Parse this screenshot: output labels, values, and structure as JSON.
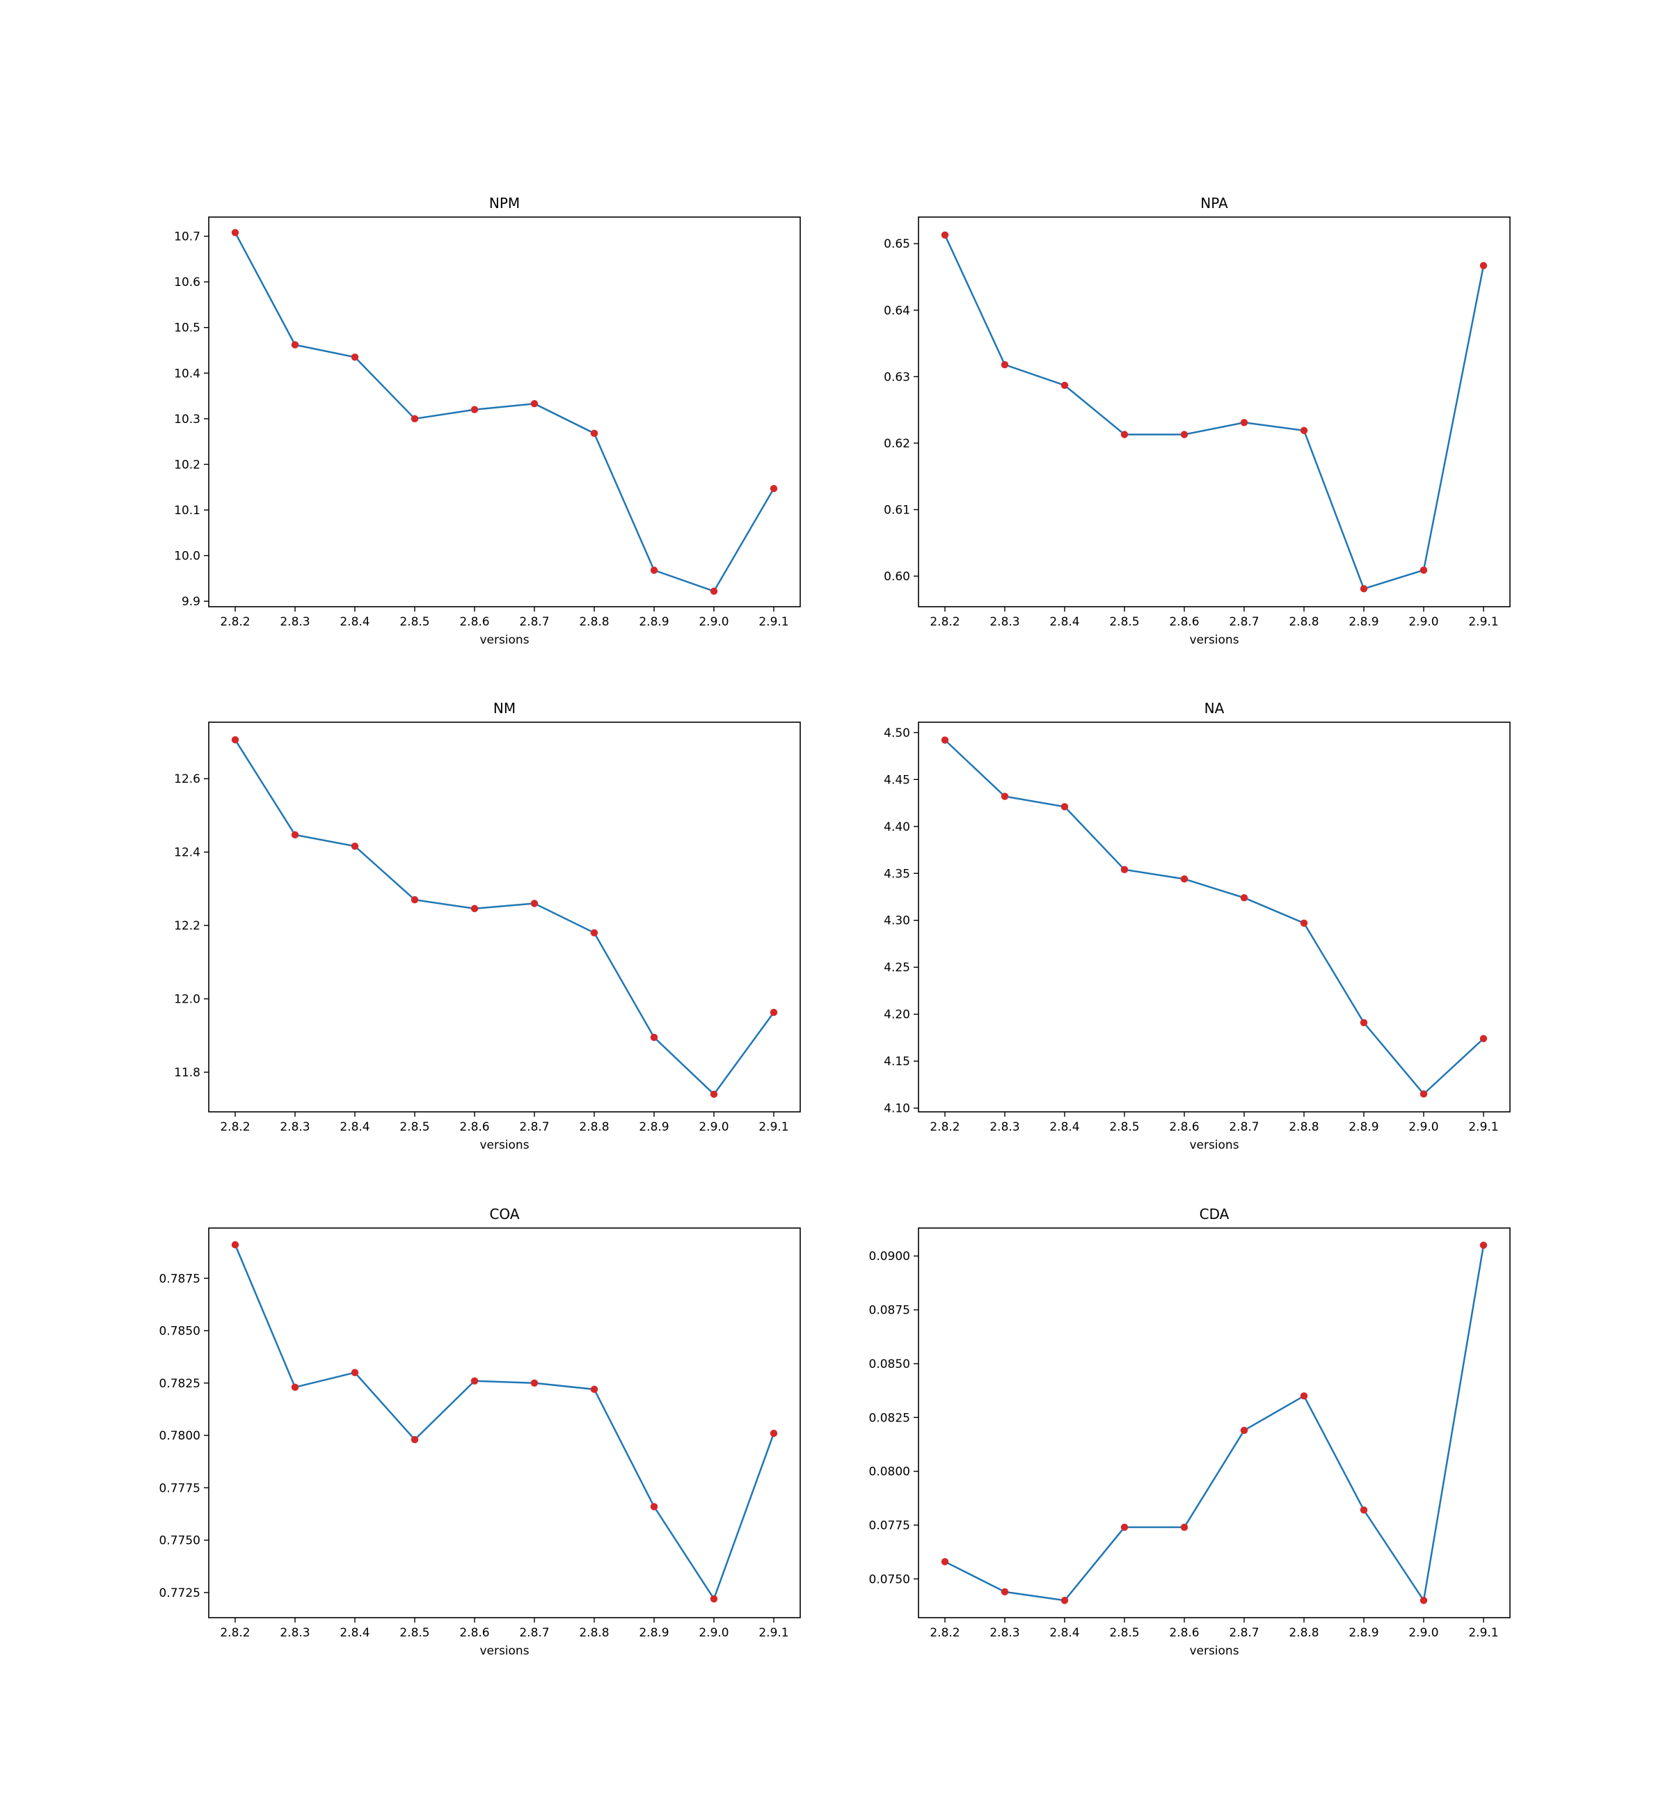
{
  "chart_data": [
    {
      "type": "line",
      "title": "NPM",
      "xlabel": "versions",
      "ylabel": "",
      "categories": [
        "2.8.2",
        "2.8.3",
        "2.8.4",
        "2.8.5",
        "2.8.6",
        "2.8.7",
        "2.8.8",
        "2.8.9",
        "2.9.0",
        "2.9.1"
      ],
      "values": [
        10.708,
        10.462,
        10.435,
        10.3,
        10.32,
        10.333,
        10.268,
        9.968,
        9.922,
        10.147
      ],
      "ylim": [
        9.888,
        10.742
      ],
      "yticks": [
        "9.9",
        "10.0",
        "10.1",
        "10.2",
        "10.3",
        "10.4",
        "10.5",
        "10.6",
        "10.7"
      ],
      "yticks_values": [
        9.9,
        10.0,
        10.1,
        10.2,
        10.3,
        10.4,
        10.5,
        10.6,
        10.7
      ],
      "grid": false,
      "line_color": "#1f77b4",
      "marker_color": "#d62728"
    },
    {
      "type": "line",
      "title": "NPA",
      "xlabel": "versions",
      "ylabel": "",
      "categories": [
        "2.8.2",
        "2.8.3",
        "2.8.4",
        "2.8.5",
        "2.8.6",
        "2.8.7",
        "2.8.8",
        "2.8.9",
        "2.9.0",
        "2.9.1"
      ],
      "values": [
        0.6513,
        0.6318,
        0.6287,
        0.6213,
        0.6213,
        0.6231,
        0.6219,
        0.5981,
        0.6009,
        0.6467
      ],
      "ylim": [
        0.5954,
        0.654
      ],
      "yticks": [
        "0.60",
        "0.61",
        "0.62",
        "0.63",
        "0.64",
        "0.65"
      ],
      "yticks_values": [
        0.6,
        0.61,
        0.62,
        0.63,
        0.64,
        0.65
      ],
      "grid": false,
      "line_color": "#1f77b4",
      "marker_color": "#d62728"
    },
    {
      "type": "line",
      "title": "NM",
      "xlabel": "versions",
      "ylabel": "",
      "categories": [
        "2.8.2",
        "2.8.3",
        "2.8.4",
        "2.8.5",
        "2.8.6",
        "2.8.7",
        "2.8.8",
        "2.8.9",
        "2.9.0",
        "2.9.1"
      ],
      "values": [
        12.706,
        12.447,
        12.416,
        12.27,
        12.246,
        12.26,
        12.18,
        11.895,
        11.74,
        11.963
      ],
      "ylim": [
        11.692,
        12.754
      ],
      "yticks": [
        "11.8",
        "12.0",
        "12.2",
        "12.4",
        "12.6"
      ],
      "yticks_values": [
        11.8,
        12.0,
        12.2,
        12.4,
        12.6
      ],
      "grid": false,
      "line_color": "#1f77b4",
      "marker_color": "#d62728"
    },
    {
      "type": "line",
      "title": "NA",
      "xlabel": "versions",
      "ylabel": "",
      "categories": [
        "2.8.2",
        "2.8.3",
        "2.8.4",
        "2.8.5",
        "2.8.6",
        "2.8.7",
        "2.8.8",
        "2.8.9",
        "2.9.0",
        "2.9.1"
      ],
      "values": [
        4.492,
        4.432,
        4.421,
        4.354,
        4.344,
        4.324,
        4.297,
        4.191,
        4.115,
        4.174
      ],
      "ylim": [
        4.096,
        4.511
      ],
      "yticks": [
        "4.10",
        "4.15",
        "4.20",
        "4.25",
        "4.30",
        "4.35",
        "4.40",
        "4.45",
        "4.50"
      ],
      "yticks_values": [
        4.1,
        4.15,
        4.2,
        4.25,
        4.3,
        4.35,
        4.4,
        4.45,
        4.5
      ],
      "grid": false,
      "line_color": "#1f77b4",
      "marker_color": "#d62728"
    },
    {
      "type": "line",
      "title": "COA",
      "xlabel": "versions",
      "ylabel": "",
      "categories": [
        "2.8.2",
        "2.8.3",
        "2.8.4",
        "2.8.5",
        "2.8.6",
        "2.8.7",
        "2.8.8",
        "2.8.9",
        "2.9.0",
        "2.9.1"
      ],
      "values": [
        0.7891,
        0.7823,
        0.783,
        0.7798,
        0.7826,
        0.7825,
        0.7822,
        0.7766,
        0.7722,
        0.7801
      ],
      "ylim": [
        0.7713,
        0.7899
      ],
      "yticks": [
        "0.7725",
        "0.7750",
        "0.7775",
        "0.7800",
        "0.7825",
        "0.7850",
        "0.7875"
      ],
      "yticks_values": [
        0.7725,
        0.775,
        0.7775,
        0.78,
        0.7825,
        0.785,
        0.7875
      ],
      "grid": false,
      "line_color": "#1f77b4",
      "marker_color": "#d62728"
    },
    {
      "type": "line",
      "title": "CDA",
      "xlabel": "versions",
      "ylabel": "",
      "categories": [
        "2.8.2",
        "2.8.3",
        "2.8.4",
        "2.8.5",
        "2.8.6",
        "2.8.7",
        "2.8.8",
        "2.8.9",
        "2.9.0",
        "2.9.1"
      ],
      "values": [
        0.0758,
        0.0744,
        0.074,
        0.0774,
        0.0774,
        0.0819,
        0.0835,
        0.0782,
        0.074,
        0.0905
      ],
      "ylim": [
        0.0732,
        0.0913
      ],
      "yticks": [
        "0.0750",
        "0.0775",
        "0.0800",
        "0.0825",
        "0.0850",
        "0.0875",
        "0.0900"
      ],
      "yticks_values": [
        0.075,
        0.0775,
        0.08,
        0.0825,
        0.085,
        0.0875,
        0.09
      ],
      "grid": false,
      "line_color": "#1f77b4",
      "marker_color": "#d62728"
    }
  ]
}
